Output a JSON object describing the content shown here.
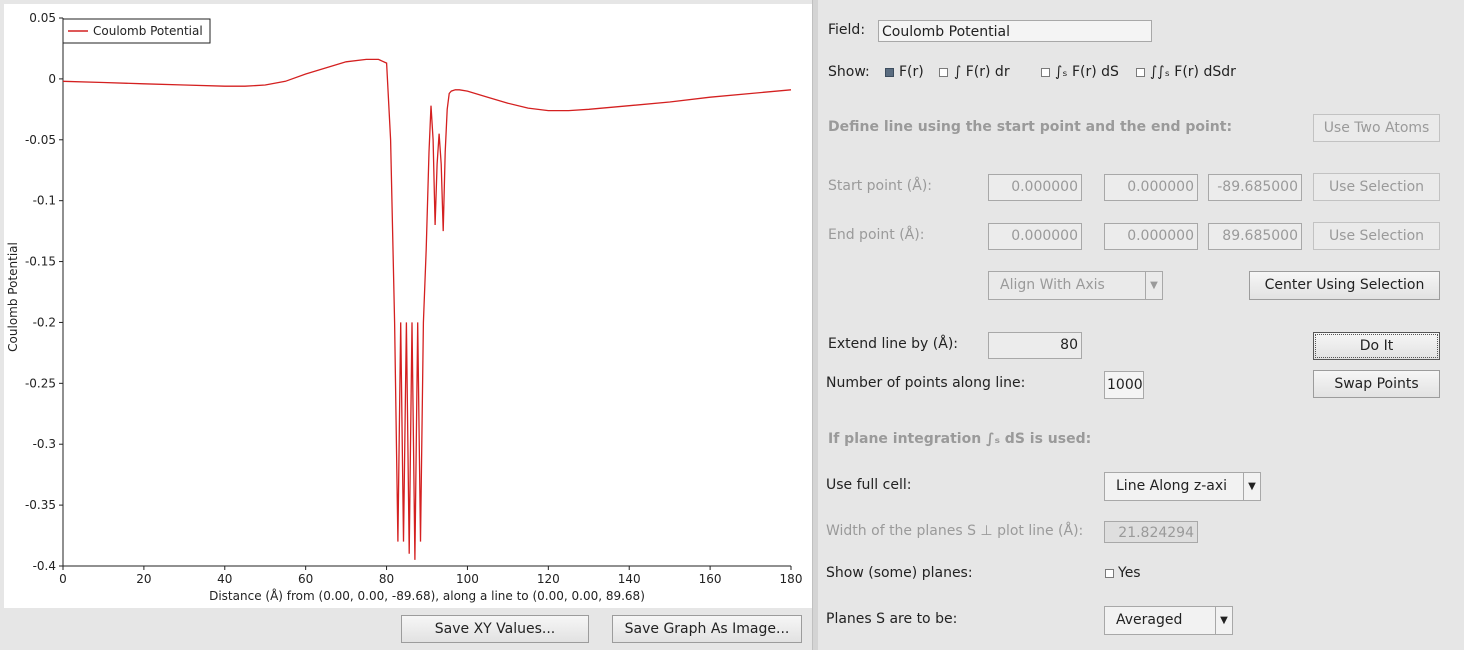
{
  "plot": {
    "legend": "Coulomb Potential",
    "ylabel": "Coulomb Potential",
    "xlabel": "Distance (Å) from (0.00, 0.00, -89.68), along a line to (0.00, 0.00, 89.68)",
    "line_color": "#d42020",
    "x_ticks": [
      "0",
      "20",
      "40",
      "60",
      "80",
      "100",
      "120",
      "140",
      "160",
      "180"
    ],
    "y_ticks": [
      "0.05",
      "0",
      "-0.05",
      "-0.1",
      "-0.15",
      "-0.2",
      "-0.25",
      "-0.3",
      "-0.35",
      "-0.4"
    ]
  },
  "chart_data": {
    "type": "line",
    "xlabel": "Distance (Å) from (0.00, 0.00, -89.68), along a line to (0.00, 0.00, 89.68)",
    "ylabel": "Coulomb Potential",
    "xlim": [
      0,
      180
    ],
    "ylim": [
      -0.4,
      0.05
    ],
    "legend_position": "top-left",
    "series": [
      {
        "name": "Coulomb Potential",
        "color": "#d42020",
        "x": [
          0,
          10,
          20,
          30,
          40,
          45,
          50,
          55,
          60,
          65,
          70,
          75,
          78,
          80,
          81,
          82,
          82.8,
          83.5,
          84.2,
          84.9,
          85.6,
          86.3,
          87.0,
          87.7,
          88.4,
          89.1,
          89.8,
          90.5,
          91,
          91.5,
          92,
          92.5,
          93,
          93.5,
          94,
          94.5,
          95,
          95.5,
          96,
          97,
          98,
          100,
          105,
          110,
          115,
          120,
          125,
          130,
          140,
          150,
          160,
          170,
          180
        ],
        "y": [
          -0.002,
          -0.003,
          -0.004,
          -0.005,
          -0.006,
          -0.006,
          -0.005,
          -0.002,
          0.004,
          0.009,
          0.014,
          0.016,
          0.016,
          0.013,
          -0.05,
          -0.2,
          -0.38,
          -0.2,
          -0.38,
          -0.2,
          -0.39,
          -0.2,
          -0.395,
          -0.2,
          -0.38,
          -0.2,
          -0.14,
          -0.06,
          -0.022,
          -0.05,
          -0.12,
          -0.07,
          -0.045,
          -0.07,
          -0.125,
          -0.06,
          -0.025,
          -0.012,
          -0.01,
          -0.009,
          -0.009,
          -0.01,
          -0.015,
          -0.02,
          -0.024,
          -0.026,
          -0.026,
          -0.025,
          -0.022,
          -0.019,
          -0.015,
          -0.012,
          -0.009
        ]
      }
    ]
  },
  "buttons": {
    "save_xy": "Save XY Values...",
    "save_graph": "Save Graph As Image..."
  },
  "panel": {
    "field_label": "Field:",
    "field_value": "Coulomb Potential",
    "show_label": "Show:",
    "show_options": [
      {
        "label": "F(r)",
        "checked": true
      },
      {
        "label": "∫ F(r) dr",
        "checked": false
      },
      {
        "label": "∫ₛ F(r) dS",
        "checked": false
      },
      {
        "label": "∫∫ₛ F(r) dSdr",
        "checked": false
      }
    ],
    "define_line_label": "Define line using the start point and the end point:",
    "use_two_atoms": "Use Two Atoms",
    "start_point_label": "Start point (Å):",
    "start_values": [
      "0.000000",
      "0.000000",
      "-89.685000"
    ],
    "end_point_label": "End point (Å):",
    "end_values": [
      "0.000000",
      "0.000000",
      "89.685000"
    ],
    "use_selection": "Use Selection",
    "align_axis": "Align With Axis",
    "center_selection": "Center Using Selection",
    "extend_label": "Extend line by (Å):",
    "extend_value": "80",
    "do_it": "Do It",
    "npoints_label": "Number of points along line:",
    "npoints_value": "1000",
    "swap_points": "Swap Points",
    "plane_integration_label": "If plane integration ∫ₛ dS is used:",
    "full_cell_label": "Use full cell:",
    "full_cell_value": "Line Along z-axi",
    "width_label": "Width of the planes S ⊥ plot line (Å):",
    "width_value": "21.824294",
    "show_planes_label": "Show (some) planes:",
    "show_planes_option": "Yes",
    "planes_label": "Planes S are to be:",
    "planes_value": "Averaged"
  }
}
